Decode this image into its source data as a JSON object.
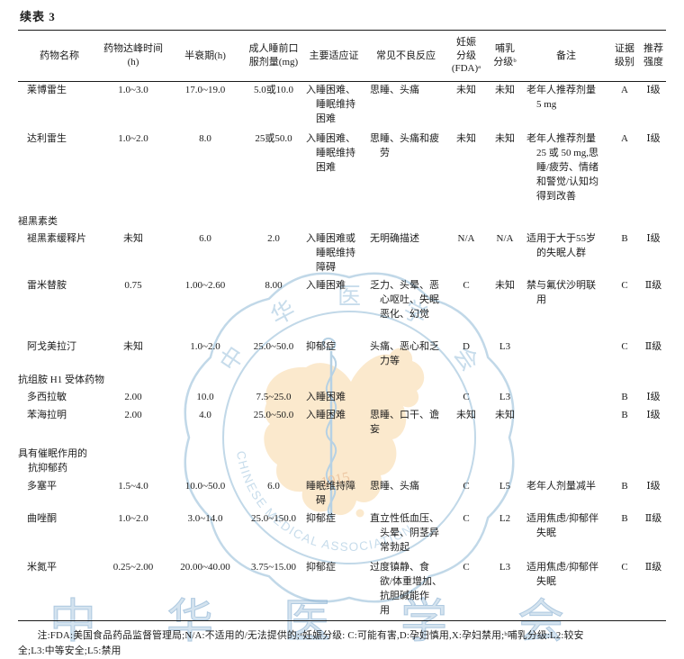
{
  "title": "续表 3",
  "table": {
    "headers": [
      "药物名称",
      "药物达峰时间\n(h)",
      "半衰期(h)",
      "成人睡前口\n服剂量(mg)",
      "主要适应证",
      "常见不良反应",
      "妊娠\n分级\n(FDA)ᵃ",
      "哺乳\n分级ᵇ",
      "备注",
      "证据\n级别",
      "推荐\n强度"
    ],
    "rows": [
      {
        "type": "drug",
        "cells": [
          "莱博雷生",
          "1.0~3.0",
          "17.0~19.0",
          "5.0或10.0",
          "入睡困难、\n　睡眠维持\n　困难",
          "思睡、头痛",
          "未知",
          "未知",
          "老年人推荐剂量\n　5 mg",
          "A",
          "Ⅰ级"
        ]
      },
      {
        "type": "drug",
        "cells": [
          "达利雷生",
          "1.0~2.0",
          "8.0",
          "25或50.0",
          "入睡困难、\n　睡眠维持\n　困难",
          "思睡、头痛和疲\n　劳",
          "未知",
          "未知",
          "老年人推荐剂量\n　25 或 50 mg,思\n　睡/疲劳、情绪\n　和警觉/认知均\n　得到改善",
          "A",
          "Ⅰ级"
        ]
      },
      {
        "type": "section",
        "label": "褪黑素类"
      },
      {
        "type": "drug",
        "cells": [
          "褪黑素缓释片",
          "未知",
          "6.0",
          "2.0",
          "入睡困难或\n　睡眠维持\n　障碍",
          "无明确描述",
          "N/A",
          "N/A",
          "适用于大于55岁\n　的失眠人群",
          "B",
          "Ⅰ级"
        ]
      },
      {
        "type": "drug",
        "cells": [
          "雷米替胺",
          "0.75",
          "1.00~2.60",
          "8.00",
          "入睡困难",
          "乏力、头晕、恶\n　心呕吐、失眠\n　恶化、幻觉",
          "C",
          "未知",
          "禁与氟伏沙明联\n　用",
          "C",
          "Ⅱ级"
        ]
      },
      {
        "type": "drug",
        "cells": [
          "阿戈美拉汀",
          "未知",
          "1.0~2.0",
          "25.0~50.0",
          "抑郁症",
          "头痛、恶心和乏\n　力等",
          "D",
          "L3",
          "",
          "C",
          "Ⅱ级"
        ]
      },
      {
        "type": "section",
        "label": "抗组胺 H1 受体药物"
      },
      {
        "type": "drug",
        "cells": [
          "多西拉敏",
          "2.00",
          "10.0",
          "7.5~25.0",
          "入睡困难",
          "",
          "C",
          "L3",
          "",
          "B",
          "Ⅰ级"
        ]
      },
      {
        "type": "drug",
        "cells": [
          "苯海拉明",
          "2.00",
          "4.0",
          "25.0~50.0",
          "入睡困难",
          "思睡、口干、谵妄",
          "未知",
          "未知",
          "",
          "B",
          "Ⅰ级"
        ]
      },
      {
        "type": "section",
        "label": "具有催眠作用的\n　抗抑郁药"
      },
      {
        "type": "drug",
        "cells": [
          "多塞平",
          "1.5~4.0",
          "10.0~50.0",
          "6.0",
          "睡眠维持障\n　碍",
          "思睡、头痛",
          "C",
          "L5",
          "老年人剂量减半",
          "B",
          "Ⅰ级"
        ]
      },
      {
        "type": "drug",
        "cells": [
          "曲唑酮",
          "1.0~2.0",
          "3.0~14.0",
          "25.0~150.0",
          "抑郁症",
          "直立性低血压、\n　头晕、阴茎异\n　常勃起",
          "C",
          "L2",
          "适用焦虑/抑郁伴\n　失眠",
          "B",
          "Ⅱ级"
        ]
      },
      {
        "type": "drug",
        "cells": [
          "米氮平",
          "0.25~2.00",
          "20.00~40.00",
          "3.75~15.00",
          "抑郁症",
          "过度镇静、食\n　欲/体重增加、\n　抗胆碱能作\n　用",
          "C",
          "L3",
          "适用焦虑/抑郁伴\n　失眠",
          "C",
          "Ⅱ级"
        ]
      }
    ]
  },
  "footnote": "注:FDA:美国食品药品监督管理局;N/A:不适用的/无法提供的;ᵃ妊娠分级: C:可能有害,D:孕妇慎用,X:孕妇禁用;ᵇ哺乳分级:L2:较安\n全;L3:中等安全;L5:禁用",
  "watermark": {
    "ring_text_cn": "中华医学会",
    "ring_text_en": "CHINESE MEDICAL ASSOCIATION",
    "year": "1915",
    "bottom_text": "中华医学会",
    "colors": {
      "blue": "#9cc1da",
      "light_blue": "#a6c8e0",
      "orange_map": "#f9dcb0",
      "orange_text": "#e2a368"
    }
  }
}
